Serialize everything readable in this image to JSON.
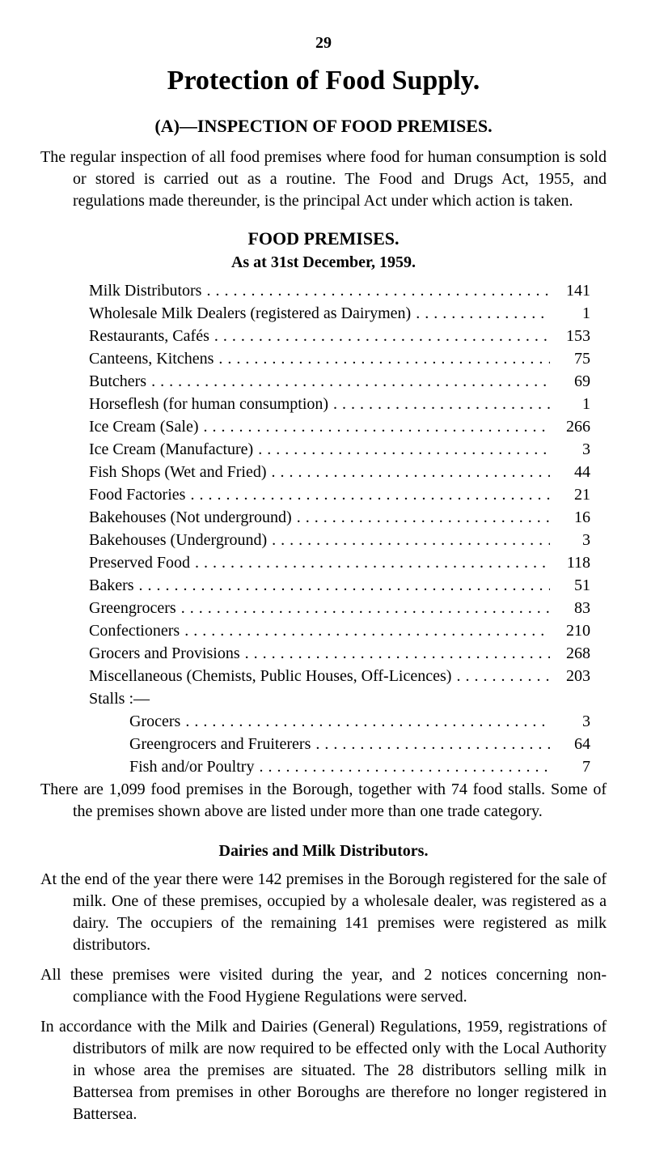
{
  "page_number": "29",
  "title": "Protection of Food Supply.",
  "section_a_heading": "(A)—INSPECTION OF FOOD PREMISES.",
  "intro_paragraph": "The regular inspection of all food premises where food for human consumption is sold or stored is carried out as a routine. The Food and Drugs Act, 1955, and regulations made thereunder, is the principal Act under which action is taken.",
  "table_title": "FOOD PREMISES.",
  "table_subtitle": "As at 31st December, 1959.",
  "premises": [
    {
      "label": "Milk Distributors",
      "value": "141"
    },
    {
      "label": "Wholesale Milk Dealers (registered as Dairymen)",
      "value": "1"
    },
    {
      "label": "Restaurants, Cafés",
      "value": "153"
    },
    {
      "label": "Canteens, Kitchens",
      "value": "75"
    },
    {
      "label": "Butchers",
      "value": "69"
    },
    {
      "label": "Horseflesh (for human consumption)",
      "value": "1"
    },
    {
      "label": "Ice Cream (Sale)",
      "value": "266"
    },
    {
      "label": "Ice Cream (Manufacture)",
      "value": "3"
    },
    {
      "label": "Fish Shops (Wet and Fried)",
      "value": "44"
    },
    {
      "label": "Food Factories",
      "value": "21"
    },
    {
      "label": "Bakehouses (Not underground)",
      "value": "16"
    },
    {
      "label": "Bakehouses (Underground)",
      "value": "3"
    },
    {
      "label": "Preserved Food",
      "value": "118"
    },
    {
      "label": "Bakers",
      "value": "51"
    },
    {
      "label": "Greengrocers",
      "value": "83"
    },
    {
      "label": "Confectioners",
      "value": "210"
    },
    {
      "label": "Grocers and Provisions",
      "value": "268"
    },
    {
      "label": "Miscellaneous (Chemists, Public Houses, Off-Licences)",
      "value": "203"
    }
  ],
  "stalls_label": "Stalls :—",
  "stalls": [
    {
      "label": "Grocers",
      "value": "3"
    },
    {
      "label": "Greengrocers and Fruiterers",
      "value": "64"
    },
    {
      "label": "Fish and/or Poultry",
      "value": "7"
    }
  ],
  "summary_paragraph": "There are 1,099 food premises in the Borough, together with 74 food stalls. Some of the premises shown above are listed under more than one trade category.",
  "dairies_title": "Dairies and Milk Distributors.",
  "dairies_p1": "At the end of the year there were 142 premises in the Borough registered for the sale of milk. One of these premises, occupied by a wholesale dealer, was registered as a dairy. The occupiers of the remaining 141 premises were registered as milk distributors.",
  "dairies_p2": "All these premises were visited during the year, and 2 notices concerning non-compliance with the Food Hygiene Regulations were served.",
  "dairies_p3": "In accordance with the Milk and Dairies (General) Regulations, 1959, registrations of distributors of milk are now required to be effected only with the Local Authority in whose area the premises are situated. The 28 distributors selling milk in Battersea from premises in other Boroughs are therefore no longer registered in Battersea."
}
